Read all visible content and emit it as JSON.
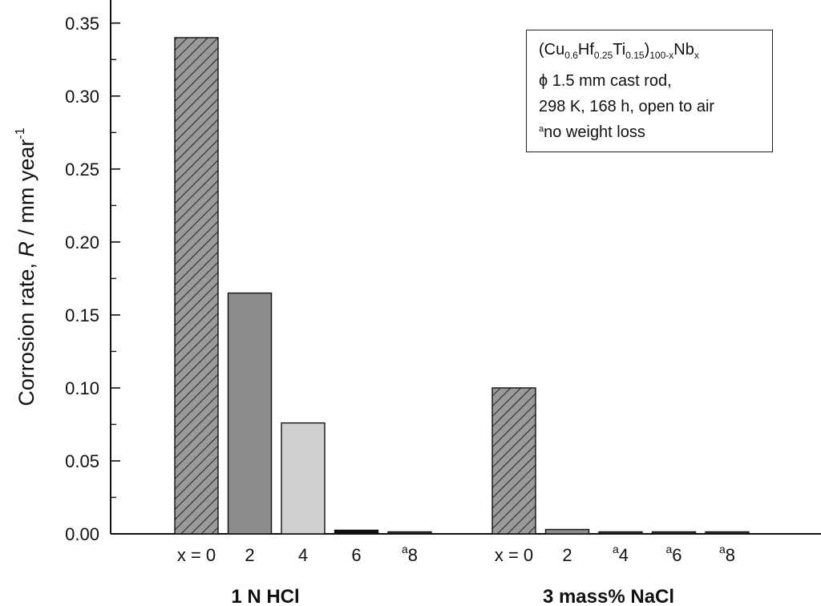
{
  "chart_data": {
    "type": "bar",
    "ylabel": "Corrosion rate, R / mm year-1",
    "ylim": [
      0,
      0.35
    ],
    "yticks": [
      "0.00",
      "0.05",
      "0.10",
      "0.15",
      "0.20",
      "0.25",
      "0.30",
      "0.35"
    ],
    "groups": [
      {
        "name": "1 N HCl",
        "bars": [
          {
            "label": "x = 0",
            "value": 0.34,
            "fill": "hatched",
            "note": ""
          },
          {
            "label": "2",
            "value": 0.165,
            "fill": "#8c8c8c",
            "note": ""
          },
          {
            "label": "4",
            "value": 0.076,
            "fill": "#cfcfcf",
            "note": ""
          },
          {
            "label": "6",
            "value": 0.0025,
            "fill": "#111111",
            "note": ""
          },
          {
            "label": "8",
            "value": 0.0008,
            "fill": "#333333",
            "note": "a"
          }
        ]
      },
      {
        "name": "3 mass% NaCl",
        "bars": [
          {
            "label": "x = 0",
            "value": 0.1,
            "fill": "hatched",
            "note": ""
          },
          {
            "label": "2",
            "value": 0.003,
            "fill": "#8c8c8c",
            "note": ""
          },
          {
            "label": "4",
            "value": 0.0008,
            "fill": "#333333",
            "note": "a"
          },
          {
            "label": "6",
            "value": 0.0008,
            "fill": "#333333",
            "note": "a"
          },
          {
            "label": "8",
            "value": 0.0008,
            "fill": "#333333",
            "note": "a"
          }
        ]
      }
    ],
    "legend": {
      "composition": {
        "cu": "(Cu",
        "cu_sub": "0.6",
        "hf": "Hf",
        "hf_sub": "0.25",
        "ti": "Ti",
        "ti_sub": "0.15",
        "close": ")",
        "close_sub": "100-x",
        "nb": "Nb",
        "nb_sub": "x"
      },
      "line2": "ϕ 1.5 mm cast rod,",
      "line3": "298 K, 168 h, open to air",
      "footnote_mark": "a",
      "footnote": "no weight loss"
    }
  }
}
